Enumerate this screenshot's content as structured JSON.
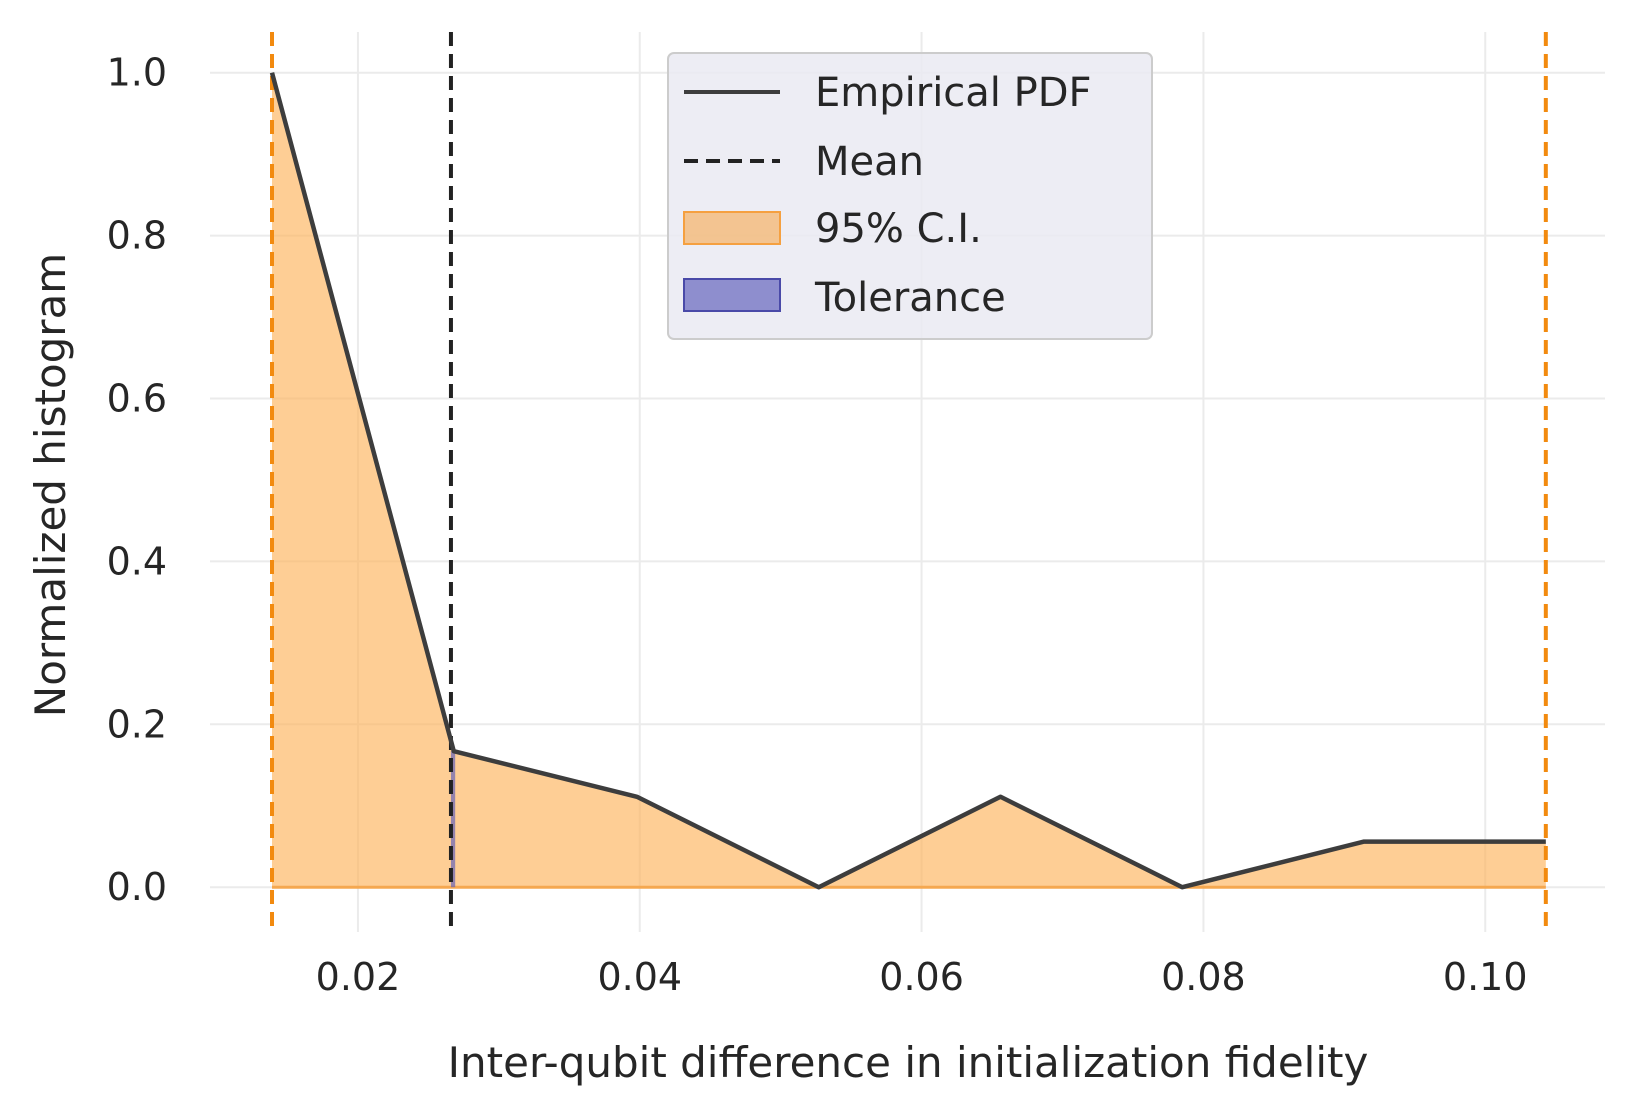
{
  "chart_data": {
    "type": "area",
    "xlabel": "Inter-qubit difference in initialization fidelity",
    "ylabel": "Normalized histogram",
    "xlim": [
      0.0095,
      0.1085
    ],
    "ylim": [
      -0.055,
      1.05
    ],
    "x_ticks": [
      0.02,
      0.04,
      0.06,
      0.08,
      0.1
    ],
    "x_tick_labels": [
      "0.02",
      "0.04",
      "0.06",
      "0.08",
      "0.10"
    ],
    "y_ticks": [
      0.0,
      0.2,
      0.4,
      0.6,
      0.8,
      1.0
    ],
    "y_tick_labels": [
      "0.0",
      "0.2",
      "0.4",
      "0.6",
      "0.8",
      "1.0"
    ],
    "grid": true,
    "legend_position": "top-center",
    "series": [
      {
        "name": "Empirical PDF",
        "type": "line",
        "color": "#3d3d3d",
        "x": [
          0.0139,
          0.0268,
          0.0398,
          0.0527,
          0.0656,
          0.0785,
          0.0914,
          0.1043
        ],
        "y": [
          1.0,
          0.167,
          0.111,
          0.0,
          0.111,
          0.0,
          0.056,
          0.056
        ]
      },
      {
        "name": "Mean",
        "type": "vline",
        "color": "#222222",
        "x": 0.0266
      },
      {
        "name": "95% C.I.",
        "type": "area",
        "color": "#fdb45c",
        "bounds": [
          0.0139,
          0.1043
        ]
      },
      {
        "name": "Tolerance",
        "type": "area",
        "color": "#5a5aba",
        "bounds": [
          0.0266,
          0.0269
        ]
      }
    ],
    "ci_line_color": "#f28a0f"
  },
  "legend": {
    "items": [
      {
        "label": "Empirical PDF",
        "kind": "solid-line"
      },
      {
        "label": "Mean",
        "kind": "dashed-line"
      },
      {
        "label": "95% C.I.",
        "kind": "orange-patch"
      },
      {
        "label": "Tolerance",
        "kind": "blue-patch"
      }
    ]
  }
}
